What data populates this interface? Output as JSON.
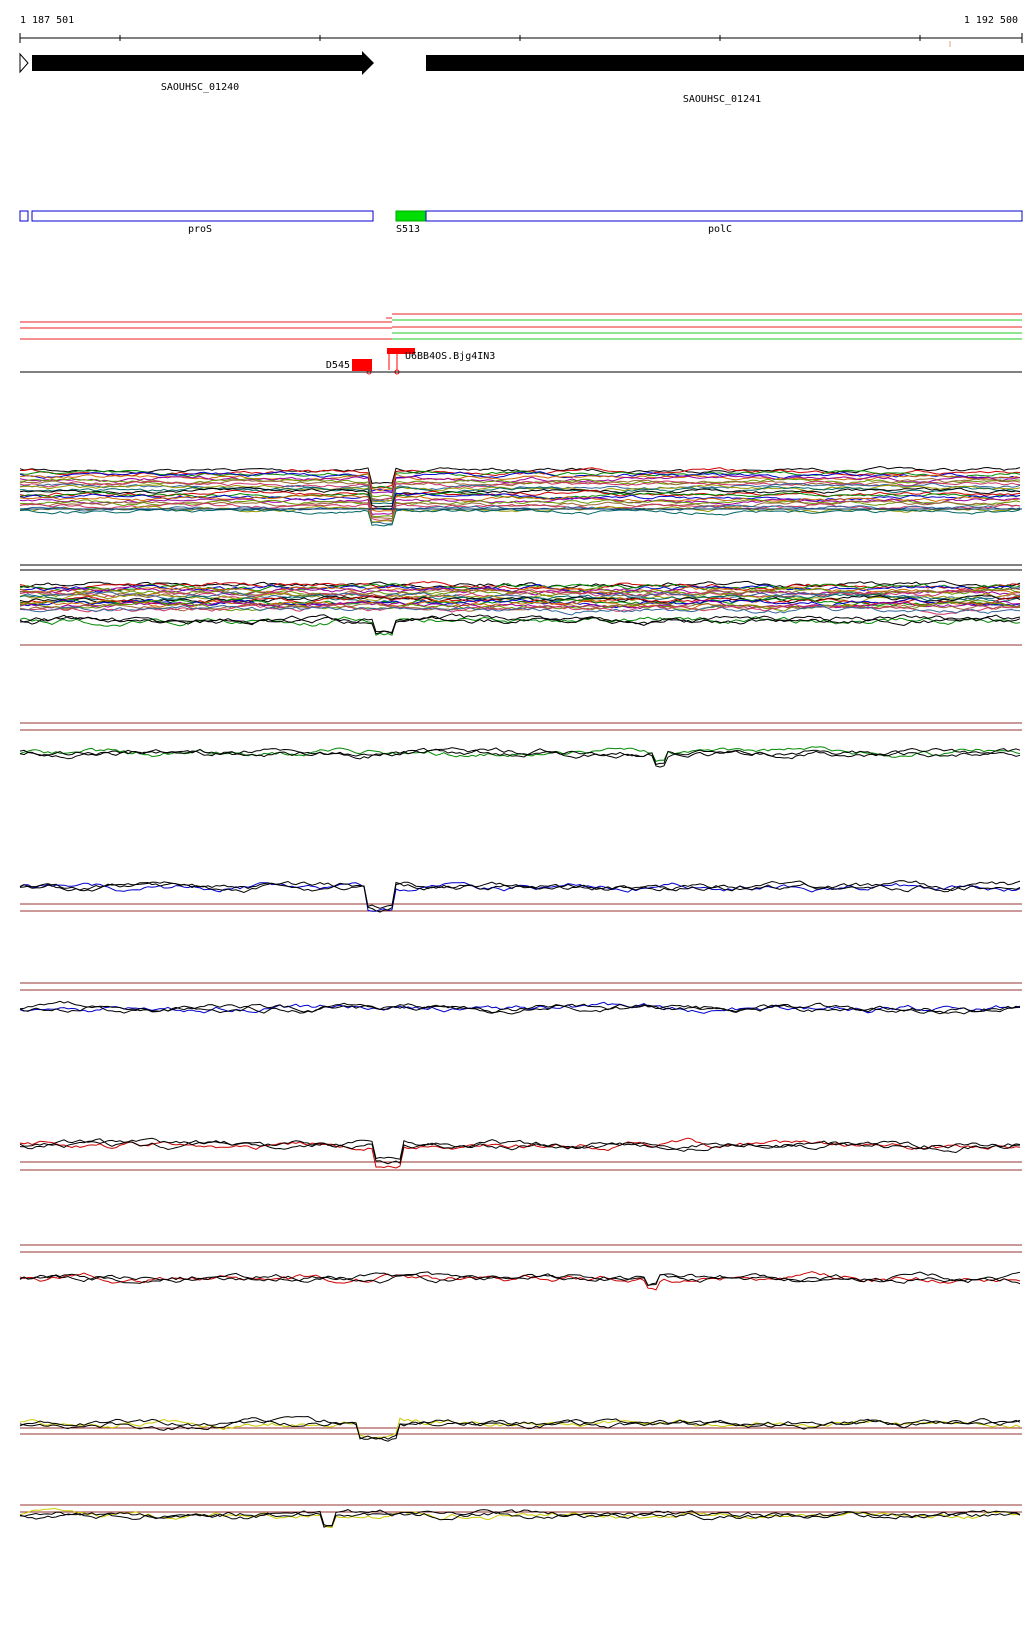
{
  "ruler": {
    "start_label": "1 187 501",
    "end_label": "1 192 500"
  },
  "genes": [
    {
      "name": "SAOUHSC_01240",
      "strand": "+"
    },
    {
      "name": "SAOUHSC_01241",
      "strand": "+"
    }
  ],
  "annotations": [
    {
      "name": "proS",
      "highlighted": false
    },
    {
      "name": "S513",
      "highlighted": true,
      "color": "#00dd00"
    },
    {
      "name": "polC",
      "highlighted": false
    }
  ],
  "features": [
    {
      "name": "D545"
    },
    {
      "name": "U6BB4OS.Bjg4IN3"
    }
  ],
  "colors": {
    "gene_fill": "#000000",
    "annotation_outline": "#0000cc",
    "reference_line": "#993333",
    "feature_red": "#ff0000",
    "green": "#008800",
    "blue": "#0000cc",
    "red": "#cc0000",
    "yellow": "#cccc00"
  },
  "profile_tracks": [
    {
      "signal_color": "#008800"
    },
    {
      "signal_color": "#008800"
    },
    {
      "signal_color": "#0000cc"
    },
    {
      "signal_color": "#0000cc"
    },
    {
      "signal_color": "#cc0000"
    },
    {
      "signal_color": "#cc0000"
    },
    {
      "signal_color": "#cccc00"
    },
    {
      "signal_color": "#cccc00"
    }
  ]
}
